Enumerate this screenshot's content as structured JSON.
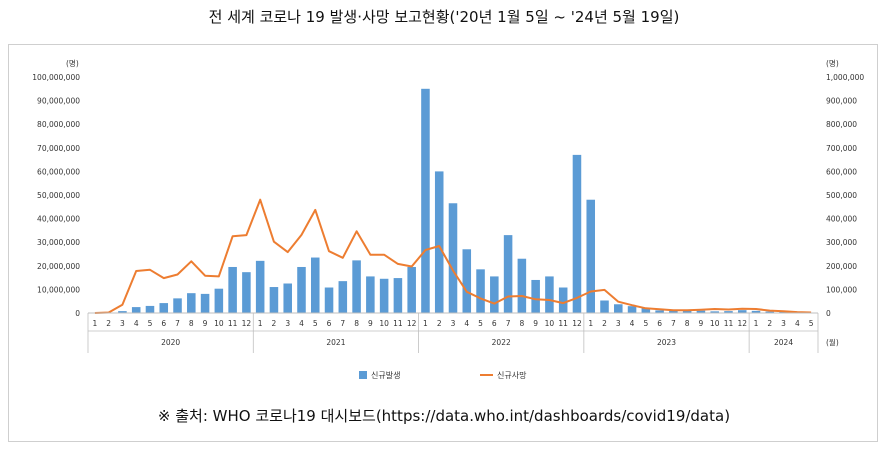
{
  "title": "전 세계 코로나 19 발생·사망 보고현황('20년 1월 5일 ~ '24년 5월 19일)",
  "source": "※ 출처: WHO 코로나19 대시보드(https://data.who.int/dashboards/covid19/data)",
  "colors": {
    "bar": "#5b9bd5",
    "line": "#ed7d31",
    "axis": "#bfbfbf",
    "text": "#333333"
  },
  "chart_data": {
    "type": "bar+line",
    "left_unit": "(명)",
    "right_unit": "(명)",
    "x_unit": "(월)",
    "left_axis": {
      "min": 0,
      "max": 100000000,
      "step": 10000000,
      "tick_labels": [
        "0",
        "10,000,000",
        "20,000,000",
        "30,000,000",
        "40,000,000",
        "50,000,000",
        "60,000,000",
        "70,000,000",
        "80,000,000",
        "90,000,000",
        "100,000,000"
      ]
    },
    "right_axis": {
      "min": 0,
      "max": 1000000,
      "step": 100000,
      "tick_labels": [
        "0",
        "100,000",
        "200,000",
        "300,000",
        "400,000",
        "500,000",
        "600,000",
        "700,000",
        "800,000",
        "900,000",
        "1,000,000"
      ]
    },
    "months": [
      "1",
      "2",
      "3",
      "4",
      "5",
      "6",
      "7",
      "8",
      "9",
      "10",
      "11",
      "12",
      "1",
      "2",
      "3",
      "4",
      "5",
      "6",
      "7",
      "8",
      "9",
      "10",
      "11",
      "12",
      "1",
      "2",
      "3",
      "4",
      "5",
      "6",
      "7",
      "8",
      "9",
      "10",
      "11",
      "12",
      "1",
      "2",
      "3",
      "4",
      "5",
      "6",
      "7",
      "8",
      "9",
      "10",
      "11",
      "12",
      "1",
      "2",
      "3",
      "4",
      "5"
    ],
    "years": [
      {
        "label": "2020",
        "count": 12
      },
      {
        "label": "2021",
        "count": 12
      },
      {
        "label": "2022",
        "count": 12
      },
      {
        "label": "2023",
        "count": 12
      },
      {
        "label": "2024",
        "count": 5
      }
    ],
    "series": [
      {
        "name": "신규발생",
        "type": "bar",
        "axis": "left",
        "values": [
          0,
          100000,
          800000,
          2500000,
          3000000,
          4200000,
          6200000,
          8400000,
          8100000,
          10300000,
          19500000,
          17300000,
          22100000,
          11000000,
          12500000,
          19500000,
          23500000,
          10800000,
          13500000,
          22300000,
          15500000,
          14500000,
          14800000,
          19500000,
          95000000,
          60000000,
          46500000,
          27000000,
          18500000,
          15500000,
          33000000,
          23000000,
          14000000,
          15500000,
          10800000,
          67000000,
          48000000,
          5300000,
          3700000,
          2900000,
          2000000,
          1100000,
          900000,
          1300000,
          1000000,
          700000,
          800000,
          1200000,
          900000,
          600000,
          500000,
          300000,
          150000
        ]
      },
      {
        "name": "신규사망",
        "type": "line",
        "axis": "right",
        "values": [
          0,
          2000,
          35000,
          178000,
          183000,
          148000,
          163000,
          219000,
          158000,
          155000,
          325000,
          330000,
          480000,
          302000,
          258000,
          331000,
          437000,
          262000,
          234000,
          346000,
          247000,
          247000,
          208000,
          197000,
          267000,
          284000,
          180000,
          90000,
          62000,
          40000,
          70000,
          72000,
          58000,
          55000,
          42000,
          64000,
          91000,
          98000,
          48000,
          33000,
          20000,
          16000,
          12000,
          12000,
          14000,
          17000,
          15000,
          18000,
          17000,
          10000,
          7000,
          4000,
          2000
        ]
      }
    ]
  }
}
